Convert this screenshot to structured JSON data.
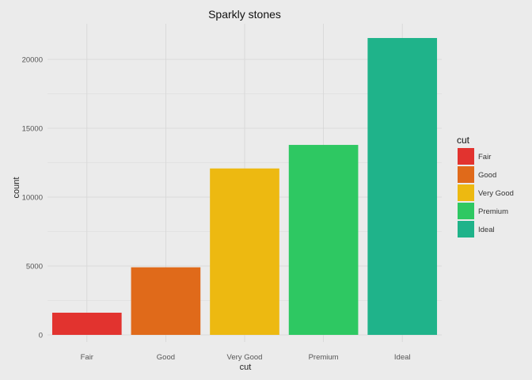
{
  "chart_data": {
    "type": "bar",
    "title": "Sparkly stones",
    "xlabel": "cut",
    "ylabel": "count",
    "categories": [
      "Fair",
      "Good",
      "Very Good",
      "Premium",
      "Ideal"
    ],
    "values": [
      1610,
      4906,
      12082,
      13791,
      21551
    ],
    "colors": [
      "#e2332f",
      "#e06a1a",
      "#edb911",
      "#2ec862",
      "#1fb38a"
    ],
    "yticks": [
      0,
      5000,
      10000,
      15000,
      20000
    ],
    "ylim": [
      0,
      22600
    ],
    "grid": true,
    "legend": {
      "title": "cut",
      "placement": "right",
      "items": [
        "Fair",
        "Good",
        "Very Good",
        "Premium",
        "Ideal"
      ]
    }
  }
}
